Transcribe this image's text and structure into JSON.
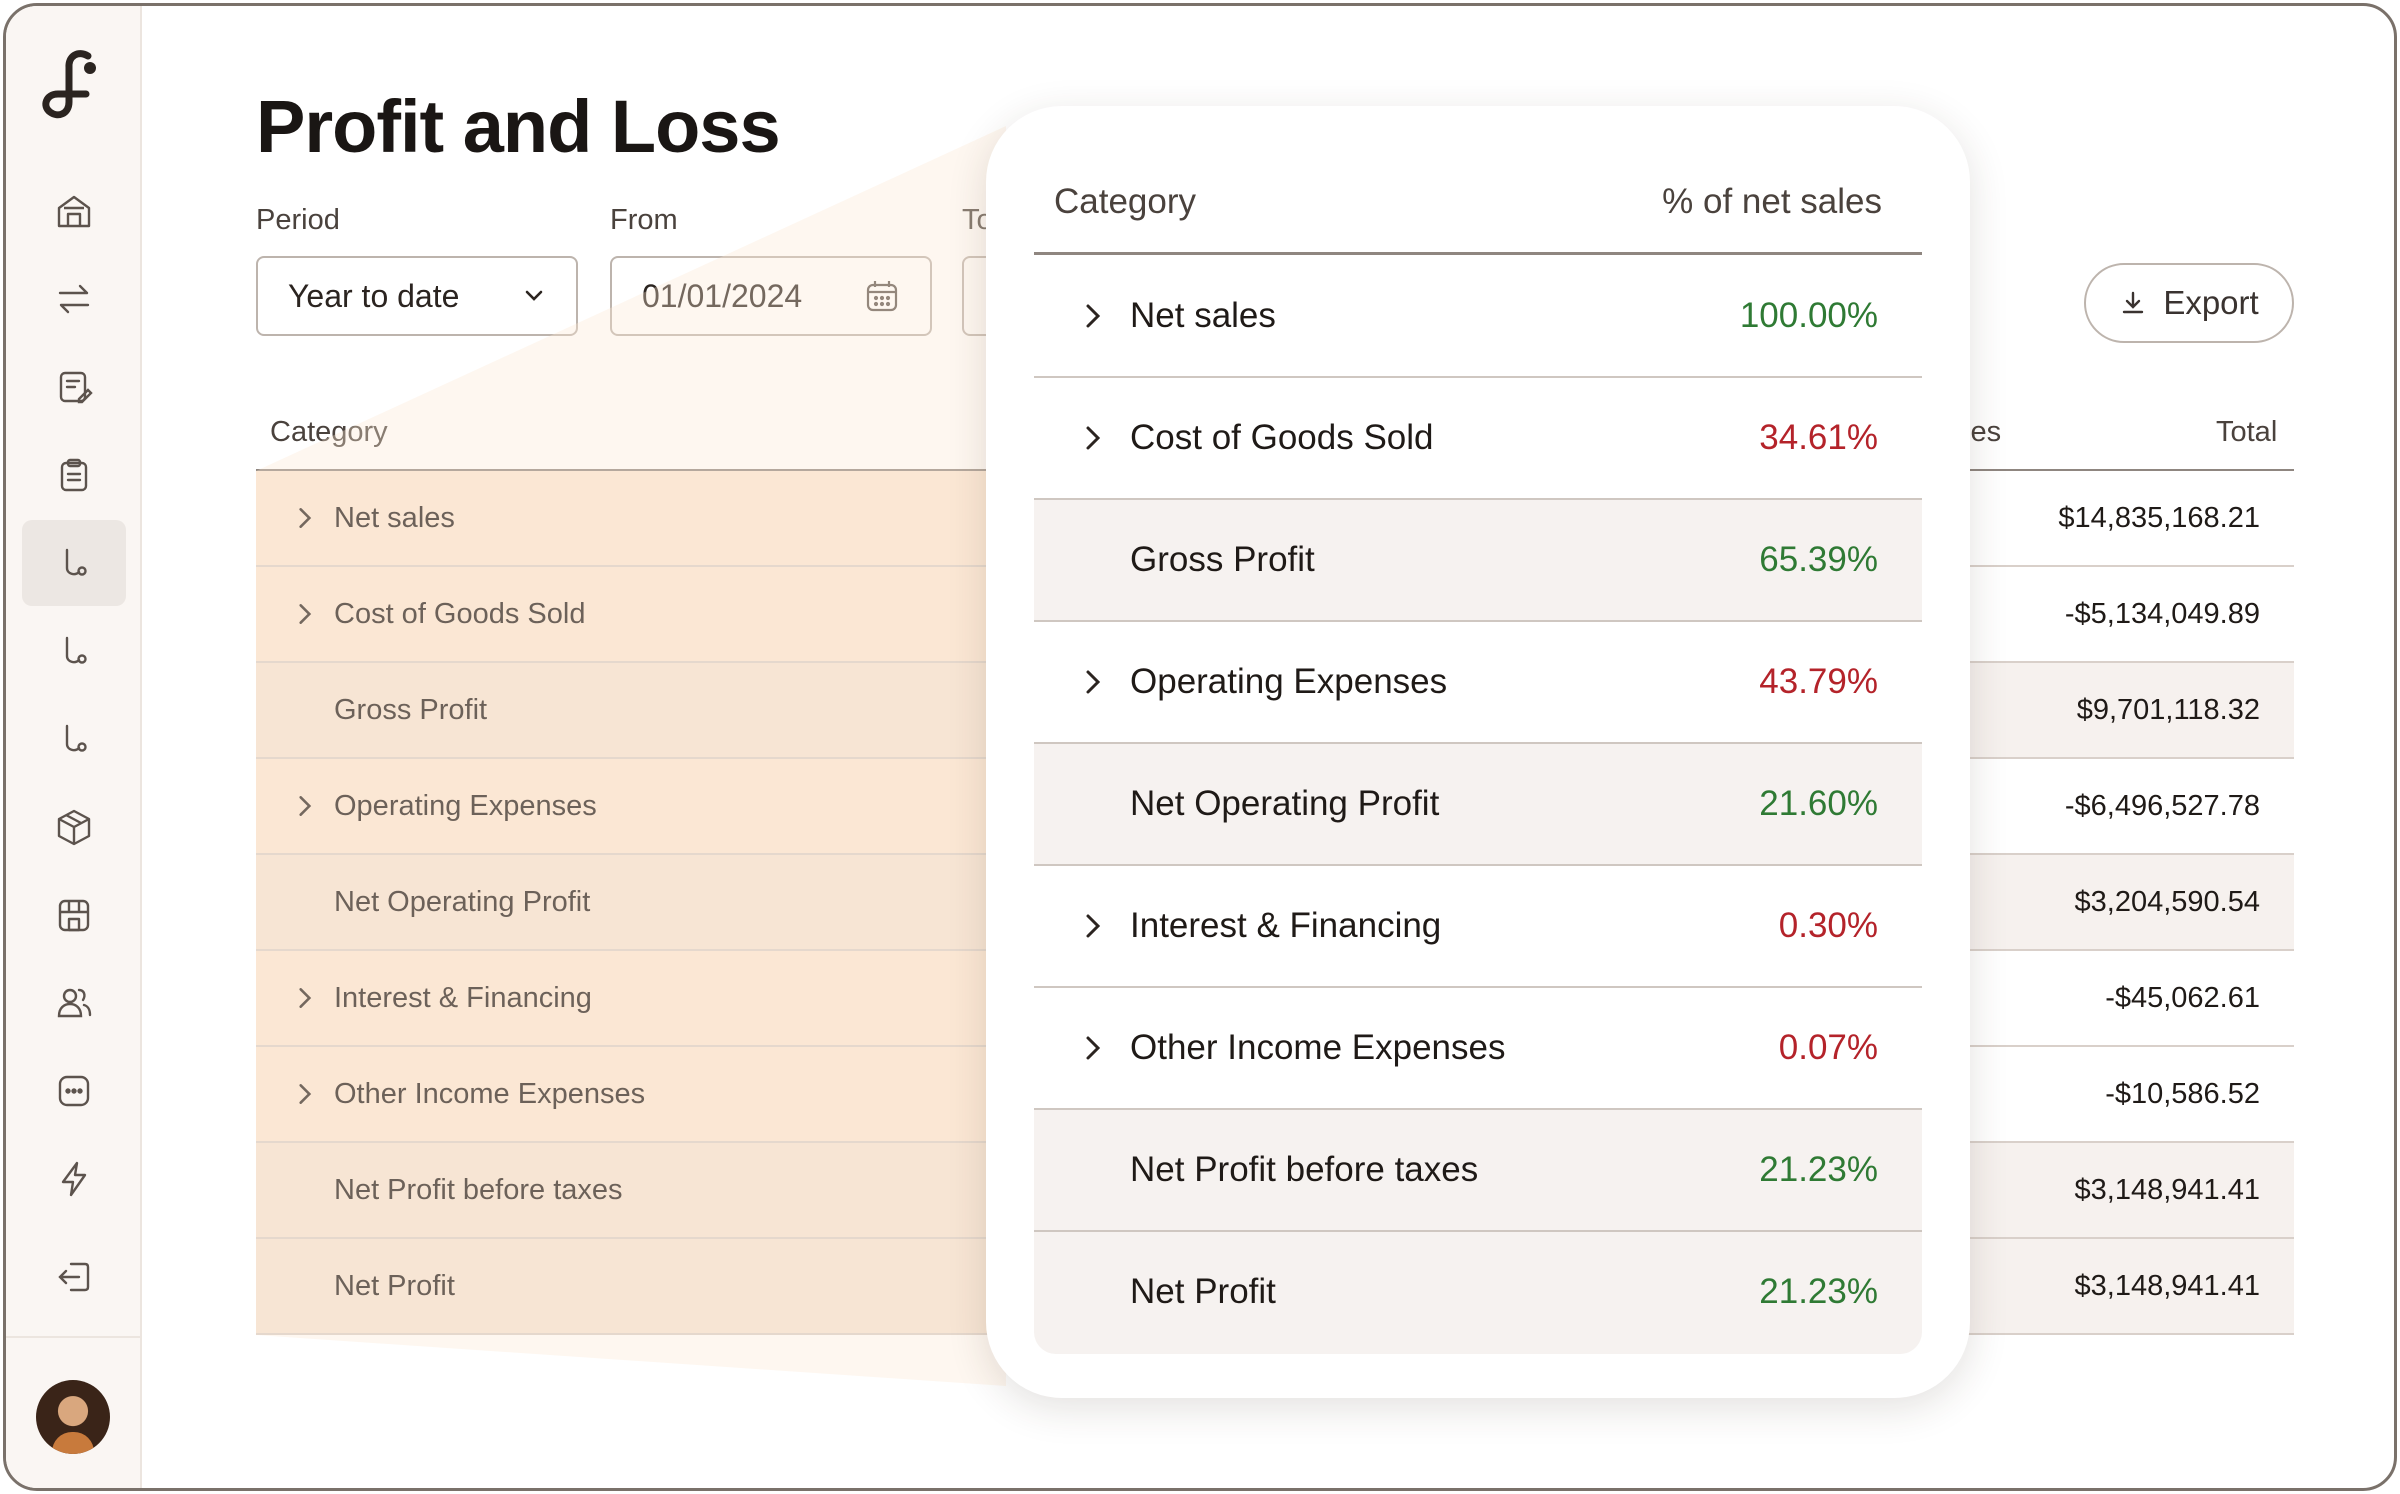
{
  "page": {
    "title": "Profit and Loss",
    "period_label": "Period",
    "period_value": "Year to date",
    "from_label": "From",
    "from_value": "01/01/2024",
    "to_label": "To",
    "export_label": "Export"
  },
  "sidebar": {
    "items": [
      {
        "icon": "home-icon"
      },
      {
        "icon": "transfer-arrows-icon"
      },
      {
        "icon": "edit-document-icon"
      },
      {
        "icon": "clipboard-icon"
      },
      {
        "icon": "route-icon",
        "active": true
      },
      {
        "icon": "route-icon"
      },
      {
        "icon": "route-icon"
      },
      {
        "icon": "package-icon"
      },
      {
        "icon": "storefront-icon"
      },
      {
        "icon": "users-icon"
      },
      {
        "icon": "more-icon"
      },
      {
        "icon": "lightning-icon"
      },
      {
        "icon": "logout-icon"
      }
    ]
  },
  "table": {
    "category_header": "Category",
    "partial_header": "les",
    "total_header": "Total",
    "rows": [
      {
        "label": "Net sales",
        "expandable": true,
        "total": "$14,835,168.21"
      },
      {
        "label": "Cost of Goods Sold",
        "expandable": true,
        "total": "-$5,134,049.89"
      },
      {
        "label": "Gross Profit",
        "expandable": false,
        "total": "$9,701,118.32"
      },
      {
        "label": "Operating Expenses",
        "expandable": true,
        "total": "-$6,496,527.78"
      },
      {
        "label": "Net Operating Profit",
        "expandable": false,
        "total": "$3,204,590.54"
      },
      {
        "label": "Interest & Financing",
        "expandable": true,
        "total": "-$45,062.61"
      },
      {
        "label": "Other Income Expenses",
        "expandable": true,
        "total": "-$10,586.52"
      },
      {
        "label": "Net Profit before taxes",
        "expandable": false,
        "total": "$3,148,941.41"
      },
      {
        "label": "Net Profit",
        "expandable": false,
        "total": "$3,148,941.41"
      }
    ]
  },
  "card": {
    "category_header": "Category",
    "pct_header": "% of net sales",
    "rows": [
      {
        "label": "Net sales",
        "value": "100.00%",
        "expandable": true,
        "tone": "positive"
      },
      {
        "label": "Cost of Goods Sold",
        "value": "34.61%",
        "expandable": true,
        "tone": "negative"
      },
      {
        "label": "Gross Profit",
        "value": "65.39%",
        "expandable": false,
        "tone": "positive"
      },
      {
        "label": "Operating Expenses",
        "value": "43.79%",
        "expandable": true,
        "tone": "negative"
      },
      {
        "label": "Net Operating Profit",
        "value": "21.60%",
        "expandable": false,
        "tone": "positive"
      },
      {
        "label": "Interest & Financing",
        "value": "0.30%",
        "expandable": true,
        "tone": "negative"
      },
      {
        "label": "Other Income Expenses",
        "value": "0.07%",
        "expandable": true,
        "tone": "negative"
      },
      {
        "label": "Net Profit before taxes",
        "value": "21.23%",
        "expandable": false,
        "tone": "positive"
      },
      {
        "label": "Net Profit",
        "value": "21.23%",
        "expandable": false,
        "tone": "positive"
      }
    ]
  },
  "colors": {
    "positive": "#2f7a34",
    "negative": "#b4232a",
    "accent_fill": "#fbe7d5"
  }
}
